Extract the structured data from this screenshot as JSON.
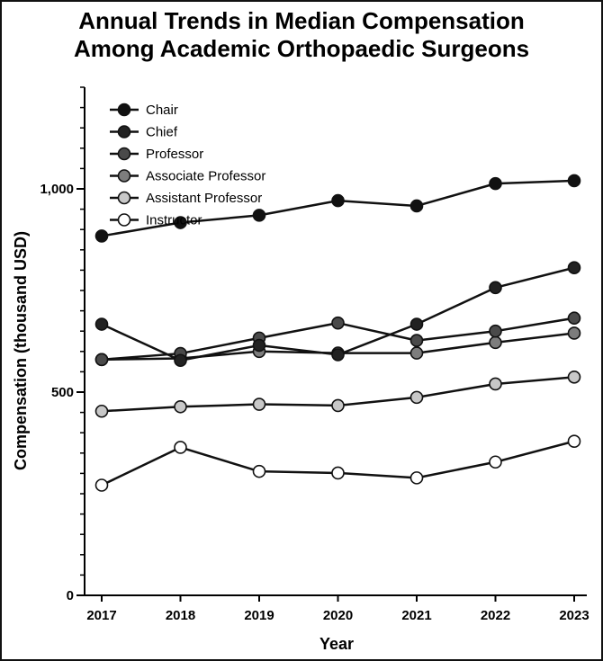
{
  "chart_data": {
    "type": "line",
    "title_lines": [
      "Annual Trends in Median Compensation",
      "Among Academic Orthopaedic Surgeons"
    ],
    "xlabel": "Year",
    "ylabel": "Compensation (thousand USD)",
    "x": [
      2017,
      2018,
      2019,
      2020,
      2021,
      2022,
      2023
    ],
    "x_tick_labels": [
      "2017",
      "2018",
      "2019",
      "2020",
      "2021",
      "2022",
      "2023"
    ],
    "ylim": [
      0,
      1250
    ],
    "y_ticks": [
      0,
      500,
      1000
    ],
    "y_tick_labels": [
      "0",
      "500",
      "1,000"
    ],
    "y_minor_step": 50,
    "legend_position": "top-left",
    "series": [
      {
        "name": "Chair",
        "color": "#111111",
        "values": [
          884,
          917,
          935,
          971,
          958,
          1013,
          1020
        ]
      },
      {
        "name": "Chief",
        "color": "#222222",
        "values": [
          667,
          578,
          615,
          592,
          667,
          757,
          806
        ]
      },
      {
        "name": "Professor",
        "color": "#4a4a4a",
        "values": [
          580,
          595,
          633,
          670,
          627,
          650,
          682
        ]
      },
      {
        "name": "Associate Professor",
        "color": "#7d7d7d",
        "values": [
          580,
          583,
          600,
          596,
          596,
          622,
          645
        ]
      },
      {
        "name": "Assistant Professor",
        "color": "#c8c8c8",
        "values": [
          453,
          464,
          470,
          467,
          487,
          520,
          537
        ]
      },
      {
        "name": "Instructor",
        "color": "#ffffff",
        "values": [
          271,
          364,
          305,
          301,
          289,
          328,
          379
        ]
      }
    ]
  }
}
